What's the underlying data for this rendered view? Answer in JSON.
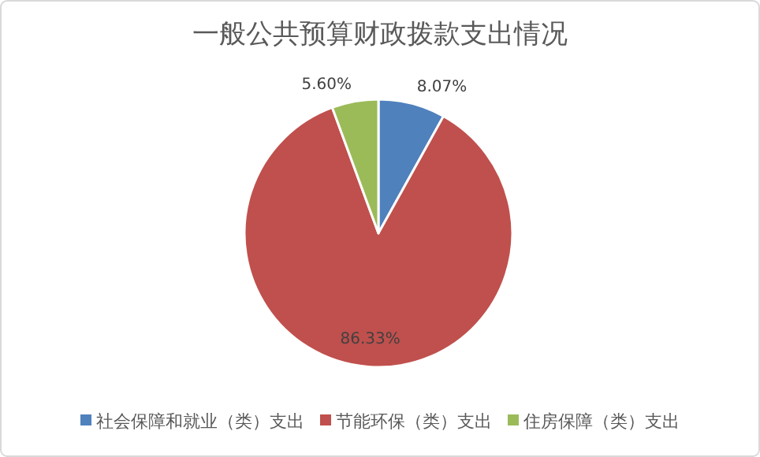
{
  "chart_data": {
    "type": "pie",
    "title": "一般公共预算财政拨款支出情况",
    "categories": [
      "社会保障和就业（类）支出",
      "节能环保（类）支出",
      "住房保障（类）支出"
    ],
    "values": [
      8.07,
      86.33,
      5.6
    ],
    "value_labels": [
      "8.07%",
      "86.33%",
      "5.60%"
    ],
    "colors": [
      "#4f81bd",
      "#c0504d",
      "#9bbb59"
    ],
    "legend": "bottom"
  }
}
